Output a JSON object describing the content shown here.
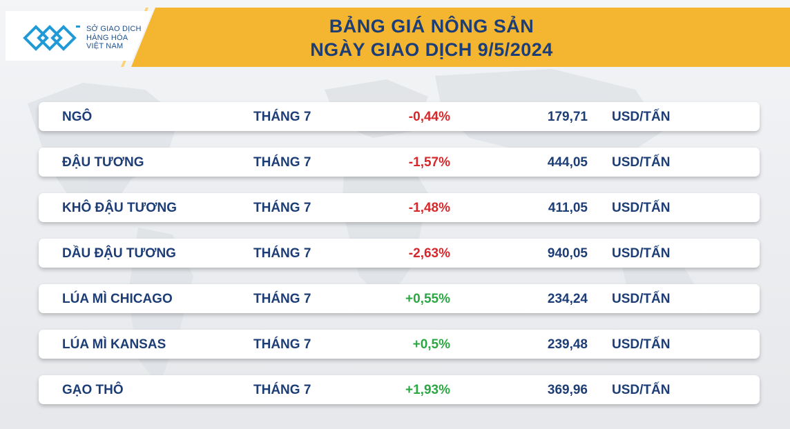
{
  "logo": {
    "line1": "SỞ GIAO DỊCH",
    "line2": "HÀNG HÓA",
    "line3": "VIỆT NAM",
    "mark_icon": "mxv-logo-icon",
    "colors": {
      "mark": "#1f9ad6",
      "text": "#1e4f8c"
    }
  },
  "header": {
    "title_line1": "BẢNG GIÁ NÔNG SẢN",
    "title_line2": "NGÀY GIAO DỊCH 9/5/2024",
    "banner_color": "#f4b630",
    "title_color": "#1c3d75"
  },
  "colors": {
    "negative": "#d6282b",
    "positive": "#2aa742"
  },
  "rows": [
    {
      "name": "NGÔ",
      "month": "THÁNG 7",
      "change": "-0,44%",
      "direction": "down",
      "price": "179,71",
      "unit": "USD/TẤN"
    },
    {
      "name": "ĐẬU TƯƠNG",
      "month": "THÁNG 7",
      "change": "-1,57%",
      "direction": "down",
      "price": "444,05",
      "unit": "USD/TẤN"
    },
    {
      "name": "KHÔ ĐẬU TƯƠNG",
      "month": "THÁNG 7",
      "change": "-1,48%",
      "direction": "down",
      "price": "411,05",
      "unit": "USD/TẤN"
    },
    {
      "name": "DẦU ĐẬU TƯƠNG",
      "month": "THÁNG 7",
      "change": "-2,63%",
      "direction": "down",
      "price": "940,05",
      "unit": "USD/TẤN"
    },
    {
      "name": "LÚA MÌ CHICAGO",
      "month": "THÁNG 7",
      "change": "+0,55%",
      "direction": "up",
      "price": "234,24",
      "unit": "USD/TẤN"
    },
    {
      "name": "LÚA MÌ KANSAS",
      "month": "THÁNG 7",
      "change": "+0,5%",
      "direction": "up",
      "price": "239,48",
      "unit": "USD/TẤN"
    },
    {
      "name": "GẠO THÔ",
      "month": "THÁNG 7",
      "change": "+1,93%",
      "direction": "up",
      "price": "369,96",
      "unit": "USD/TẤN"
    }
  ]
}
